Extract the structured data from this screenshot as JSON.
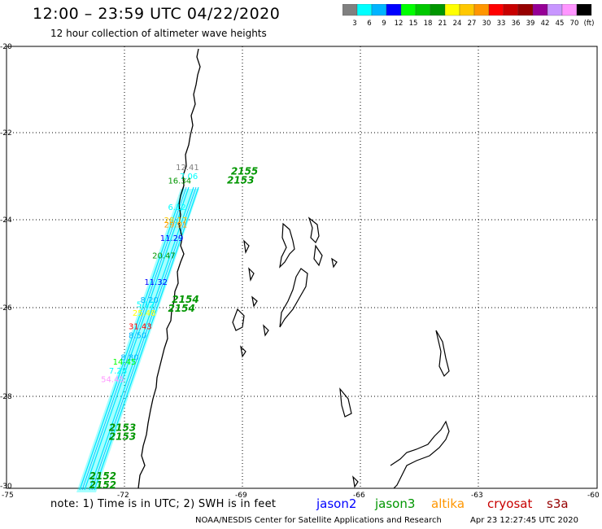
{
  "header": {
    "title": "12:00 – 23:59 UTC 04/22/2020",
    "subtitle": "12 hour collection of altimeter wave heights"
  },
  "color_scale": {
    "labels": [
      "3",
      "6",
      "9",
      "12",
      "15",
      "18",
      "21",
      "24",
      "27",
      "30",
      "33",
      "36",
      "39",
      "42",
      "45",
      "70",
      "(ft)"
    ],
    "colors": [
      "#808080",
      "#00ffff",
      "#00b4ff",
      "#0000ff",
      "#00ff00",
      "#00c800",
      "#009600",
      "#ffff00",
      "#ffc800",
      "#ff9600",
      "#ff0000",
      "#c80000",
      "#960000",
      "#960096",
      "#c896ff",
      "#ff96ff",
      "#000000"
    ]
  },
  "map": {
    "lat_labels": [
      "-20",
      "-22",
      "-24",
      "-26",
      "-28",
      "-30"
    ],
    "lon_labels": [
      "-75",
      "-72",
      "-69",
      "-66",
      "-63",
      "-60"
    ],
    "time_labels": [
      {
        "text": "2155",
        "lat": -22.9,
        "lon": -69.3
      },
      {
        "text": "2153",
        "lat": -23.1,
        "lon": -69.4
      },
      {
        "text": "2154",
        "lat": -25.8,
        "lon": -70.8
      },
      {
        "text": "2154",
        "lat": -26.0,
        "lon": -70.9
      },
      {
        "text": "2153",
        "lat": -28.7,
        "lon": -72.4
      },
      {
        "text": "2153",
        "lat": -28.9,
        "lon": -72.4
      },
      {
        "text": "2152",
        "lat": -29.8,
        "lon": -72.9
      },
      {
        "text": "2152",
        "lat": -30.0,
        "lon": -72.9
      }
    ],
    "wave_labels": [
      {
        "text": "12.41",
        "lat": -22.8,
        "lon": -70.7,
        "color": "#808080"
      },
      {
        "text": "7.06",
        "lat": -23.0,
        "lon": -70.6,
        "color": "#00ffff"
      },
      {
        "text": "16.34",
        "lat": -23.1,
        "lon": -70.9,
        "color": "#009600"
      },
      {
        "text": "6.12",
        "lat": -23.7,
        "lon": -70.9,
        "color": "#00ffff"
      },
      {
        "text": "28.17",
        "lat": -24.0,
        "lon": -71.0,
        "color": "#ffc800"
      },
      {
        "text": "29.91",
        "lat": -24.1,
        "lon": -71.0,
        "color": "#ff9600"
      },
      {
        "text": "11.29",
        "lat": -24.4,
        "lon": -71.1,
        "color": "#0000ff"
      },
      {
        "text": "20.47",
        "lat": -24.8,
        "lon": -71.3,
        "color": "#009600"
      },
      {
        "text": "11.32",
        "lat": -25.4,
        "lon": -71.5,
        "color": "#0000ff"
      },
      {
        "text": "8.20",
        "lat": -25.8,
        "lon": -71.6,
        "color": "#00b4ff"
      },
      {
        "text": "5.12",
        "lat": -25.9,
        "lon": -71.7,
        "color": "#00ffff"
      },
      {
        "text": "25.48",
        "lat": -26.1,
        "lon": -71.8,
        "color": "#ffff00"
      },
      {
        "text": "31.43",
        "lat": -26.4,
        "lon": -71.9,
        "color": "#ff0000"
      },
      {
        "text": "8.50",
        "lat": -26.6,
        "lon": -71.9,
        "color": "#00b4ff"
      },
      {
        "text": "8.80",
        "lat": -27.1,
        "lon": -72.1,
        "color": "#00b4ff"
      },
      {
        "text": "14.45",
        "lat": -27.2,
        "lon": -72.3,
        "color": "#00ff00"
      },
      {
        "text": "7.28",
        "lat": -27.4,
        "lon": -72.4,
        "color": "#00ffff"
      },
      {
        "text": "54.45",
        "lat": -27.6,
        "lon": -72.6,
        "color": "#ff96ff"
      }
    ]
  },
  "footer": {
    "note": "note: 1) Time is in UTC; 2) SWH is in feet",
    "satellites": [
      {
        "name": "jason2",
        "color": "#0000ff"
      },
      {
        "name": "jason3",
        "color": "#009600"
      },
      {
        "name": "altika",
        "color": "#ff9600"
      },
      {
        "name": "cryosat",
        "color": "#c80000"
      },
      {
        "name": "s3a",
        "color": "#960000"
      }
    ],
    "credit": "NOAA/NESDIS Center for Satellite Applications and Research",
    "timestamp": "Apr 23 12:27:45 UTC 2020"
  }
}
